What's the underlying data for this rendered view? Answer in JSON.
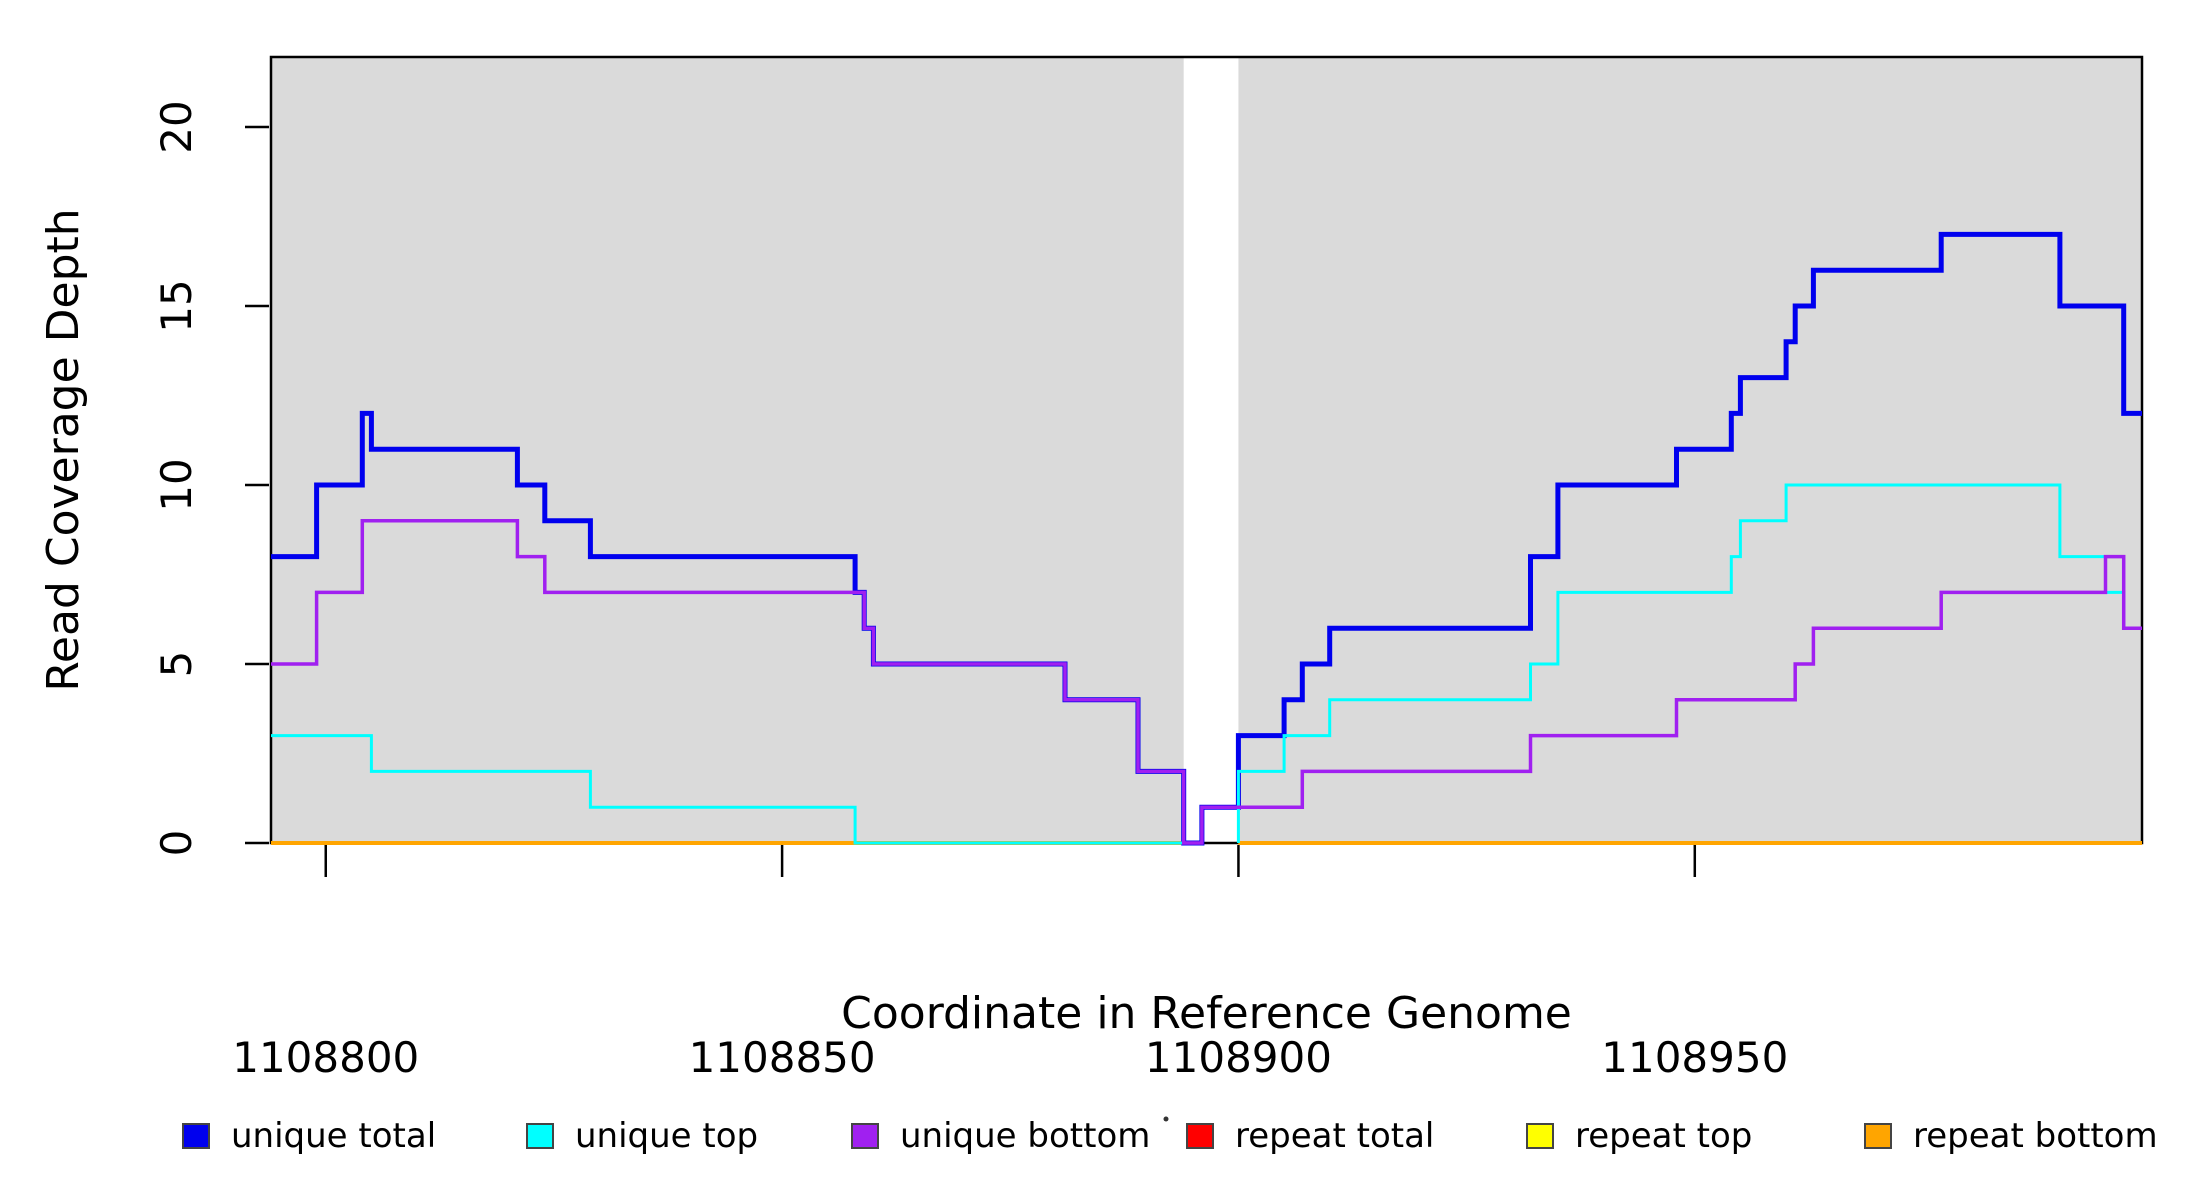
{
  "figure": {
    "background": "#FFFFFF"
  },
  "axes": {
    "xlabel": "Coordinate in Reference Genome",
    "ylabel": "Read Coverage Depth",
    "x_tick_labels": [
      "1108800",
      "1108850",
      "1108900",
      "1108950"
    ],
    "y_tick_labels": [
      "0",
      "5",
      "10",
      "15",
      "20"
    ]
  },
  "legend": {
    "items": [
      {
        "label": "unique total",
        "color": "#0000EE"
      },
      {
        "label": "unique top",
        "color": "#00FFFF"
      },
      {
        "label": "unique bottom",
        "color": "#A020F0"
      },
      {
        "label": "repeat total",
        "color": "#FF0000"
      },
      {
        "label": "repeat top",
        "color": "#FFFF00"
      },
      {
        "label": "repeat bottom",
        "color": "#FFA500"
      }
    ]
  },
  "chart_data": {
    "type": "line",
    "subtype": "step-coverage",
    "title": "",
    "xlabel": "Coordinate in Reference Genome",
    "ylabel": "Read Coverage Depth",
    "xlim": [
      1108794,
      1108999
    ],
    "ylim": [
      0,
      22
    ],
    "x_ticks": [
      1108800,
      1108850,
      1108900,
      1108950
    ],
    "y_ticks": [
      0,
      5,
      10,
      15,
      20
    ],
    "grid": false,
    "panel_color": "#DADADA",
    "box_color": "#000000",
    "no_data_gap_x": [
      1108894,
      1108900
    ],
    "legend_position": "bottom",
    "series": [
      {
        "name": "repeat total",
        "color": "#FF0000",
        "width": 3,
        "segments": [
          [
            [
              1108794,
              0
            ],
            [
              1108894,
              0
            ]
          ],
          [
            [
              1108900,
              0
            ],
            [
              1108999,
              0
            ]
          ]
        ]
      },
      {
        "name": "repeat top",
        "color": "#FFFF00",
        "width": 3,
        "segments": [
          [
            [
              1108794,
              0
            ],
            [
              1108894,
              0
            ]
          ],
          [
            [
              1108900,
              0
            ],
            [
              1108999,
              0
            ]
          ]
        ]
      },
      {
        "name": "repeat bottom",
        "color": "#FFA500",
        "width": 4,
        "segments": [
          [
            [
              1108794,
              0
            ],
            [
              1108894,
              0
            ]
          ],
          [
            [
              1108900,
              0
            ],
            [
              1108999,
              0
            ]
          ]
        ]
      },
      {
        "name": "unique total",
        "color": "#0000EE",
        "width": 5,
        "segments": [
          [
            [
              1108794,
              8
            ],
            [
              1108799,
              10
            ],
            [
              1108804,
              12
            ],
            [
              1108805,
              11
            ],
            [
              1108821,
              10
            ],
            [
              1108824,
              9
            ],
            [
              1108829,
              8
            ],
            [
              1108858,
              7
            ],
            [
              1108859,
              6
            ],
            [
              1108860,
              5
            ],
            [
              1108881,
              4
            ],
            [
              1108889,
              2
            ],
            [
              1108894,
              0
            ],
            [
              1108896,
              1
            ],
            [
              1108900,
              3
            ],
            [
              1108905,
              4
            ],
            [
              1108907,
              5
            ],
            [
              1108910,
              6
            ],
            [
              1108932,
              8
            ],
            [
              1108935,
              10
            ],
            [
              1108948,
              11
            ],
            [
              1108954,
              12
            ],
            [
              1108955,
              13
            ],
            [
              1108960,
              14
            ],
            [
              1108961,
              15
            ],
            [
              1108963,
              16
            ],
            [
              1108977,
              17
            ],
            [
              1108990,
              15
            ],
            [
              1108997,
              12
            ],
            [
              1108999,
              12
            ]
          ]
        ]
      },
      {
        "name": "unique top",
        "color": "#00FFFF",
        "width": 3,
        "segments": [
          [
            [
              1108794,
              3
            ],
            [
              1108805,
              2
            ],
            [
              1108829,
              1
            ],
            [
              1108858,
              0
            ],
            [
              1108894,
              0
            ]
          ],
          [
            [
              1108900,
              0
            ],
            [
              1108900,
              2
            ],
            [
              1108905,
              3
            ],
            [
              1108910,
              4
            ],
            [
              1108932,
              5
            ],
            [
              1108935,
              7
            ],
            [
              1108954,
              8
            ],
            [
              1108955,
              9
            ],
            [
              1108960,
              10
            ],
            [
              1108990,
              8
            ],
            [
              1108995,
              7
            ],
            [
              1108997,
              6
            ],
            [
              1108999,
              6
            ]
          ]
        ]
      },
      {
        "name": "unique bottom",
        "color": "#A020F0",
        "width": 3.5,
        "segments": [
          [
            [
              1108794,
              5
            ],
            [
              1108799,
              7
            ],
            [
              1108804,
              9
            ],
            [
              1108821,
              8
            ],
            [
              1108824,
              7
            ],
            [
              1108859,
              6
            ],
            [
              1108860,
              5
            ],
            [
              1108881,
              4
            ],
            [
              1108889,
              2
            ],
            [
              1108894,
              0
            ],
            [
              1108896,
              1
            ],
            [
              1108907,
              2
            ],
            [
              1108932,
              3
            ],
            [
              1108948,
              4
            ],
            [
              1108961,
              5
            ],
            [
              1108963,
              6
            ],
            [
              1108977,
              7
            ],
            [
              1108995,
              8
            ],
            [
              1108997,
              6
            ],
            [
              1108999,
              6
            ]
          ]
        ]
      }
    ],
    "stray_mark": {
      "x": 1166,
      "y": 1119
    }
  }
}
